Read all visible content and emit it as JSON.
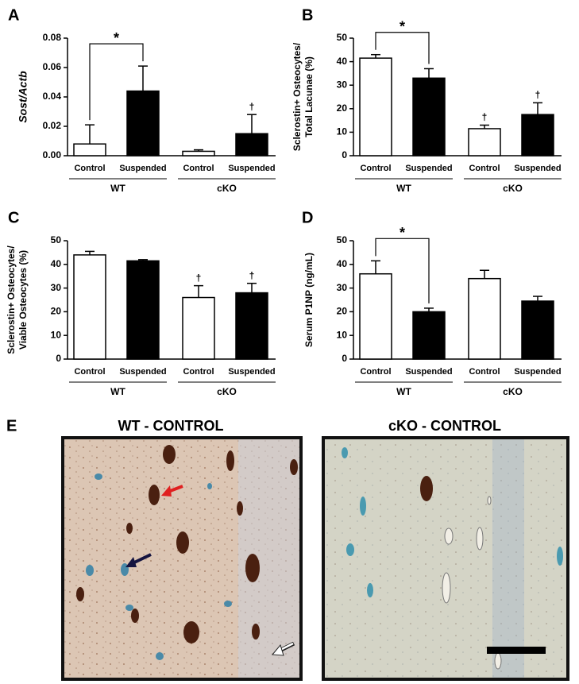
{
  "chart_data": [
    {
      "type": "bar",
      "panel": "A",
      "ylabel": [
        "Sost/Actb"
      ],
      "categories": [
        "Control",
        "Suspended",
        "Control",
        "Suspended"
      ],
      "groups": [
        "WT",
        "cKO"
      ],
      "values": [
        0.008,
        0.044,
        0.003,
        0.015
      ],
      "errors": [
        0.013,
        0.017,
        0.001,
        0.013
      ],
      "colors": [
        "#ffffff",
        "#000000",
        "#ffffff",
        "#000000"
      ],
      "bar_marks": [
        null,
        null,
        null,
        "†"
      ],
      "significance": [
        {
          "label": "*",
          "bars": [
            0,
            1
          ]
        }
      ],
      "ylim": [
        0,
        0.08
      ],
      "yticks": [
        {
          "value": 0,
          "label": "0.00"
        },
        {
          "value": 0.02,
          "label": "0.02"
        },
        {
          "value": 0.04,
          "label": "0.04"
        },
        {
          "value": 0.06,
          "label": "0.06"
        },
        {
          "value": 0.08,
          "label": "0.08"
        }
      ]
    },
    {
      "type": "bar",
      "panel": "B",
      "ylabel": [
        "Sclerostin+ Osteocytes/",
        "Total Lacunae (%)"
      ],
      "categories": [
        "Control",
        "Suspended",
        "Control",
        "Suspended"
      ],
      "groups": [
        "WT",
        "cKO"
      ],
      "values": [
        41.5,
        33,
        11.5,
        17.5
      ],
      "errors": [
        1.5,
        4,
        1.5,
        5
      ],
      "colors": [
        "#ffffff",
        "#000000",
        "#ffffff",
        "#000000"
      ],
      "bar_marks": [
        null,
        null,
        "†",
        "†"
      ],
      "significance": [
        {
          "label": "*",
          "bars": [
            0,
            1
          ]
        }
      ],
      "ylim": [
        0,
        50
      ],
      "yticks": [
        0,
        10,
        20,
        30,
        40,
        50
      ]
    },
    {
      "type": "bar",
      "panel": "C",
      "ylabel": [
        "Sclerostin+ Osteocytes/",
        "Viable Osteocytes (%)"
      ],
      "categories": [
        "Control",
        "Suspended",
        "Control",
        "Suspended"
      ],
      "groups": [
        "WT",
        "cKO"
      ],
      "values": [
        44,
        41.5,
        26,
        28
      ],
      "errors": [
        1.5,
        0.5,
        5,
        4
      ],
      "colors": [
        "#ffffff",
        "#000000",
        "#ffffff",
        "#000000"
      ],
      "bar_marks": [
        null,
        null,
        "†",
        "†"
      ],
      "significance": [],
      "ylim": [
        0,
        50
      ],
      "yticks": [
        0,
        10,
        20,
        30,
        40,
        50
      ]
    },
    {
      "type": "bar",
      "panel": "D",
      "ylabel": [
        "Serum P1NP (ng/mL)"
      ],
      "categories": [
        "Control",
        "Suspended",
        "Control",
        "Suspended"
      ],
      "groups": [
        "WT",
        "cKO"
      ],
      "values": [
        36,
        20,
        34,
        24.5
      ],
      "errors": [
        5.5,
        1.5,
        3.5,
        2
      ],
      "colors": [
        "#ffffff",
        "#000000",
        "#ffffff",
        "#000000"
      ],
      "bar_marks": [
        null,
        null,
        null,
        null
      ],
      "significance": [
        {
          "label": "*",
          "bars": [
            0,
            1
          ]
        }
      ],
      "ylim": [
        0,
        50
      ],
      "yticks": [
        0,
        10,
        20,
        30,
        40,
        50
      ]
    }
  ],
  "panel_e": {
    "label": "E",
    "images": [
      {
        "title": "WT - CONTROL"
      },
      {
        "title": "cKO - CONTROL"
      }
    ]
  }
}
